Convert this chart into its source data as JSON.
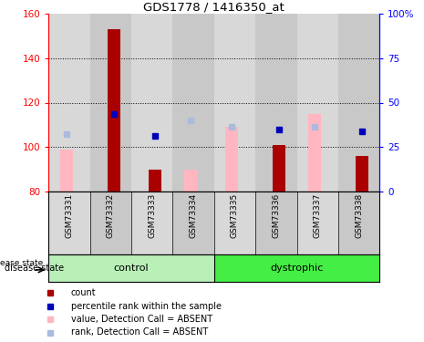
{
  "title": "GDS1778 / 1416350_at",
  "samples": [
    "GSM73331",
    "GSM73332",
    "GSM73333",
    "GSM73334",
    "GSM73335",
    "GSM73336",
    "GSM73337",
    "GSM73338"
  ],
  "ylim_left": [
    80,
    160
  ],
  "ylim_right": [
    0,
    100
  ],
  "yticks_left": [
    80,
    100,
    120,
    140,
    160
  ],
  "yticks_right": [
    0,
    25,
    50,
    75,
    100
  ],
  "ytick_labels_right": [
    "0",
    "25",
    "50",
    "75",
    "100%"
  ],
  "bar_color_dark_red": "#AA0000",
  "bar_color_pink": "#FFB6C1",
  "dot_color_dark_blue": "#0000BB",
  "dot_color_light_blue": "#AABBDD",
  "count_values": [
    null,
    153,
    90,
    null,
    null,
    101,
    null,
    96
  ],
  "value_absent_values": [
    99,
    null,
    null,
    90,
    109,
    null,
    115,
    null
  ],
  "percentile_rank_values": [
    null,
    115,
    105,
    null,
    null,
    108,
    null,
    107
  ],
  "rank_absent_values": [
    106,
    null,
    null,
    112,
    109,
    null,
    109,
    null
  ],
  "bar_bottom": 80,
  "grid_lines": [
    100,
    120,
    140
  ],
  "col_colors": [
    "#d8d8d8",
    "#c8c8c8"
  ],
  "control_color": "#b8f0b8",
  "dystrophic_color": "#44ee44",
  "legend_items": [
    [
      "#AA0000",
      "count"
    ],
    [
      "#0000BB",
      "percentile rank within the sample"
    ],
    [
      "#FFB6C1",
      "value, Detection Call = ABSENT"
    ],
    [
      "#AABBDD",
      "rank, Detection Call = ABSENT"
    ]
  ]
}
